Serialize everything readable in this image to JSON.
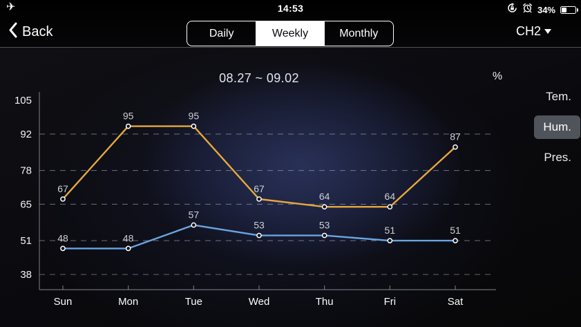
{
  "status_bar": {
    "time": "14:53",
    "battery_percent": "34%",
    "icons": [
      "airplane-mode-icon",
      "rotation-lock-icon",
      "alarm-icon",
      "battery-icon"
    ]
  },
  "nav": {
    "back_label": "Back",
    "period_tabs": [
      {
        "label": "Daily",
        "active": false
      },
      {
        "label": "Weekly",
        "active": true
      },
      {
        "label": "Monthly",
        "active": false
      }
    ],
    "channel_selector": {
      "label": "CH2",
      "icon": "chevron-down-icon"
    }
  },
  "chart_header": {
    "date_range": "08.27 ~ 09.02",
    "unit": "%"
  },
  "side_tabs": [
    {
      "label": "Tem.",
      "active": false
    },
    {
      "label": "Hum.",
      "active": true
    },
    {
      "label": "Pres.",
      "active": false
    }
  ],
  "chart_data": {
    "type": "line",
    "title": "08.27 ~ 09.02",
    "ylabel": "%",
    "categories": [
      "Sun",
      "Mon",
      "Tue",
      "Wed",
      "Thu",
      "Fri",
      "Sat"
    ],
    "series": [
      {
        "name": "series-orange",
        "color": "#e7a93c",
        "values": [
          67,
          95,
          95,
          67,
          64,
          64,
          87
        ]
      },
      {
        "name": "series-blue",
        "color": "#69a5e2",
        "values": [
          48,
          48,
          57,
          53,
          53,
          51,
          51
        ]
      }
    ],
    "yticks": [
      105,
      92,
      78,
      65,
      51,
      38
    ],
    "ylim": [
      38,
      105
    ],
    "grid": "horizontal-dashed",
    "legend": "none",
    "colors": {
      "grid_line": "#9aa0a8",
      "axis_line": "#85898f",
      "value_label": "#cdcfd4",
      "tick_label": "#f2f3f5",
      "point_fill": "#14151b",
      "point_stroke": "#ffffff",
      "active_tab_bg": "#5c6068"
    }
  }
}
